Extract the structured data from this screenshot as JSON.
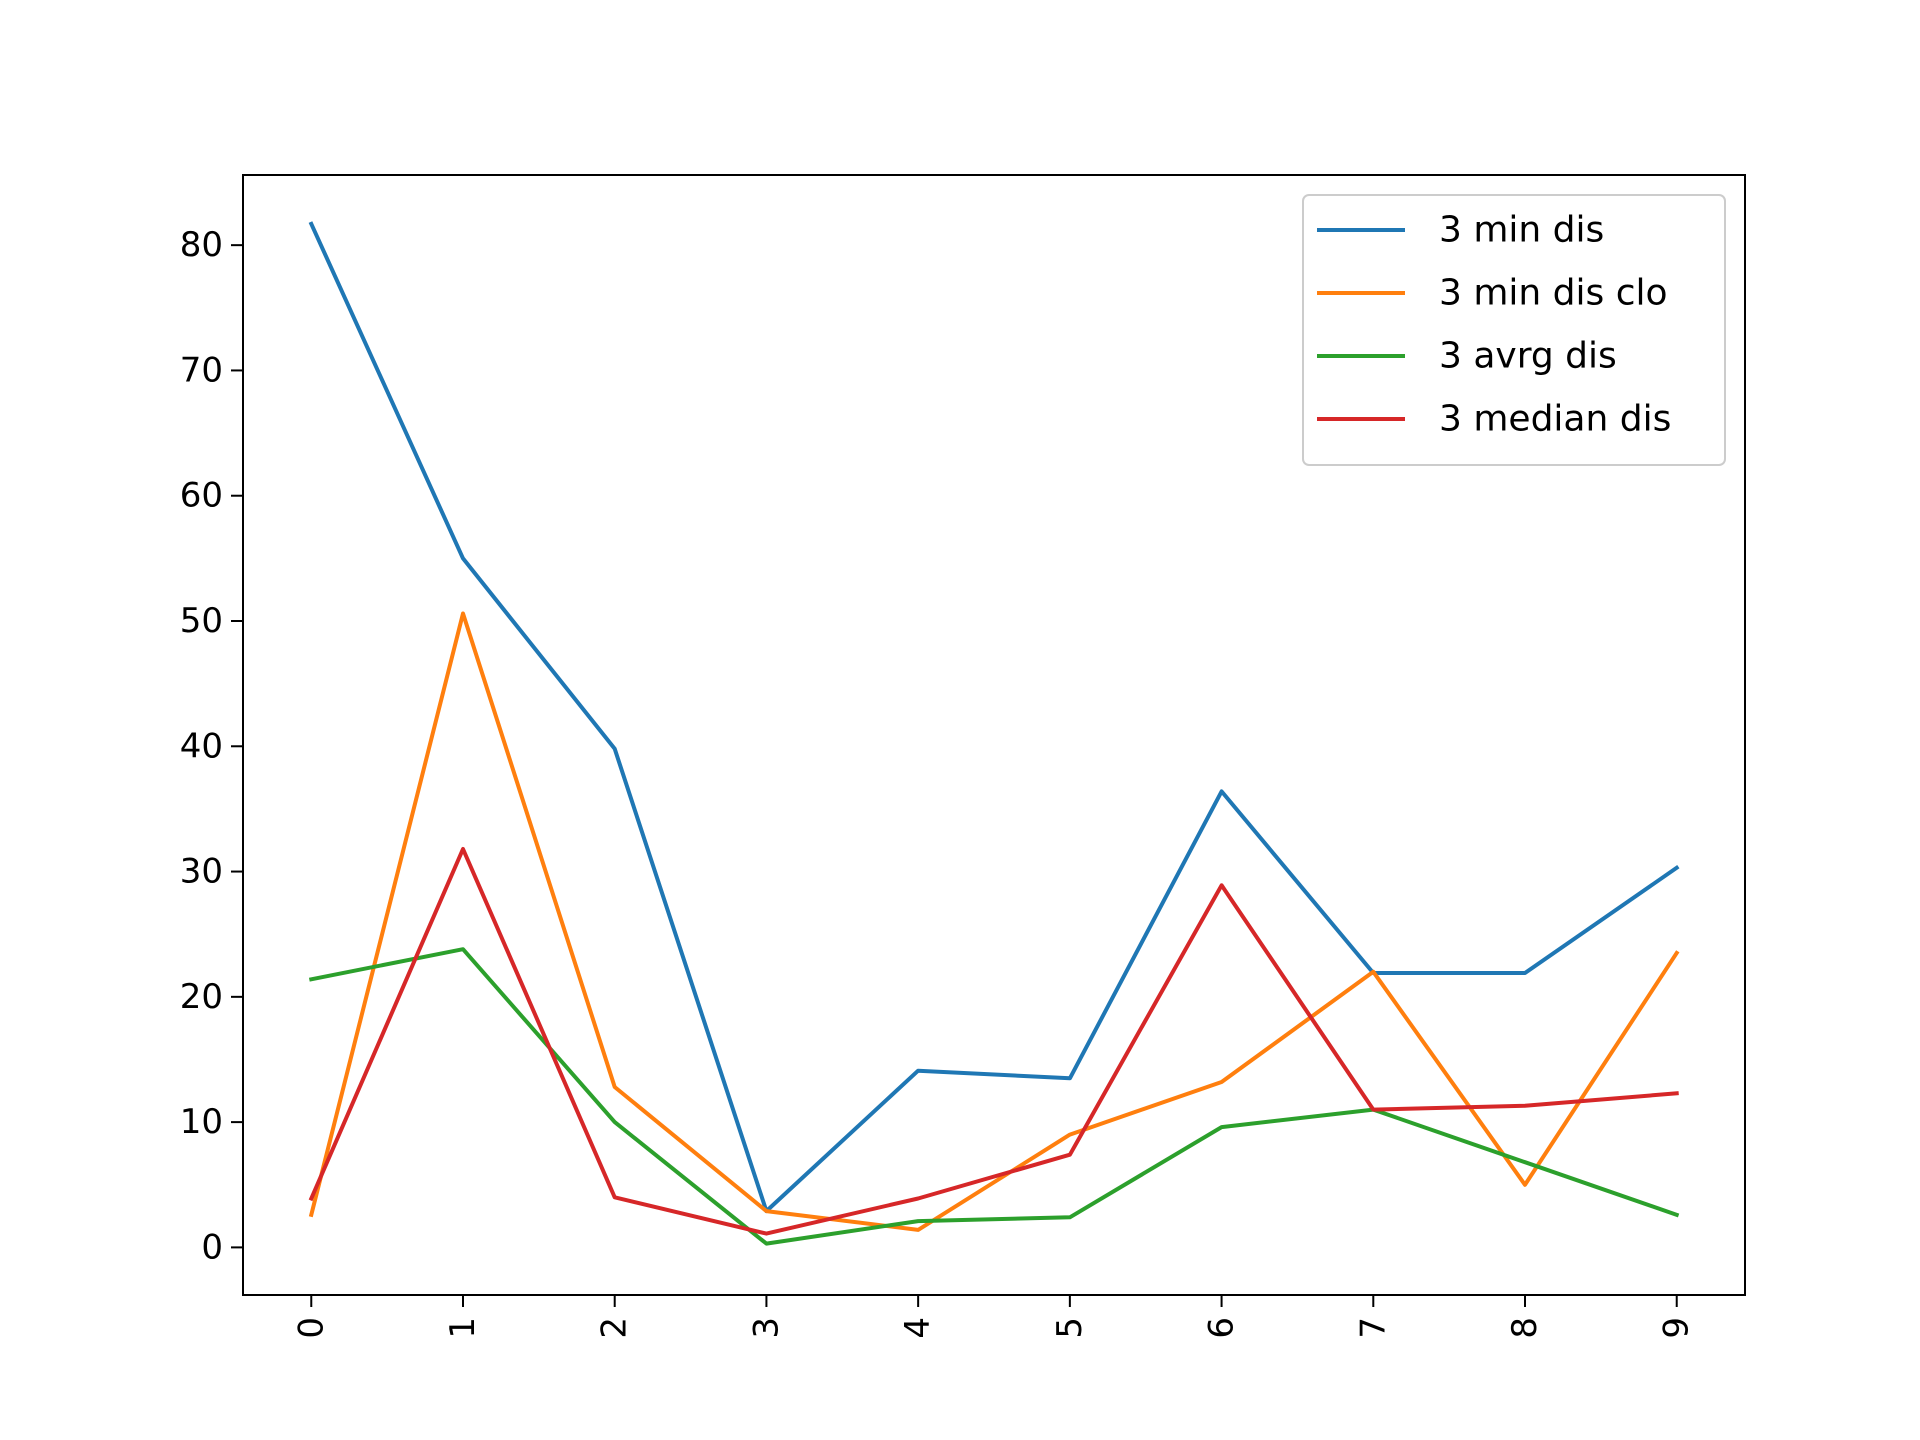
{
  "chart_data": {
    "type": "line",
    "title": "",
    "xlabel": "",
    "ylabel": "",
    "x": [
      0,
      1,
      2,
      3,
      4,
      5,
      6,
      7,
      8,
      9
    ],
    "xtick_labels": [
      "0",
      "1",
      "2",
      "3",
      "4",
      "5",
      "6",
      "7",
      "8",
      "9"
    ],
    "ytick_values": [
      0,
      10,
      20,
      30,
      40,
      50,
      60,
      70,
      80
    ],
    "ytick_labels": [
      "0",
      "10",
      "20",
      "30",
      "40",
      "50",
      "60",
      "70",
      "80"
    ],
    "xlim": [
      -0.45,
      9.45
    ],
    "ylim": [
      -3.8,
      85.6
    ],
    "grid": false,
    "legend_position": "top-right",
    "series": [
      {
        "name": "3 min dis",
        "color": "#1f77b4",
        "values": [
          81.7,
          55.0,
          39.8,
          2.9,
          14.1,
          13.5,
          36.4,
          21.9,
          21.9,
          30.3
        ]
      },
      {
        "name": "3 min dis clo",
        "color": "#ff7f0e",
        "values": [
          2.6,
          50.6,
          12.8,
          2.9,
          1.4,
          9.0,
          13.2,
          22.0,
          5.0,
          23.5
        ]
      },
      {
        "name": "3 avrg dis",
        "color": "#2ca02c",
        "values": [
          21.4,
          23.8,
          10.0,
          0.3,
          2.1,
          2.4,
          9.6,
          11.0,
          6.8,
          2.6
        ]
      },
      {
        "name": "3 median dis",
        "color": "#d62728",
        "values": [
          3.9,
          31.8,
          4.0,
          1.1,
          3.9,
          7.4,
          28.9,
          11.0,
          11.3,
          12.3
        ]
      }
    ]
  }
}
